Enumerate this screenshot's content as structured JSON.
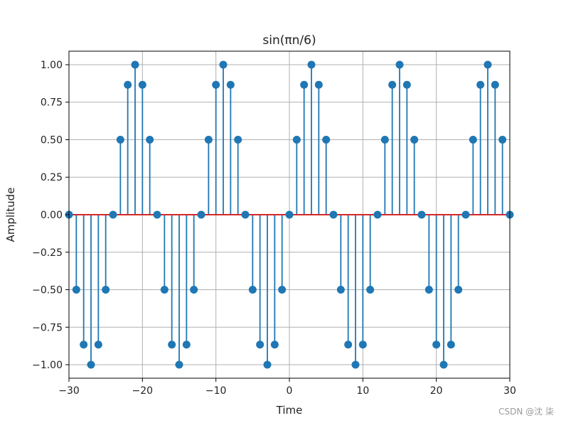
{
  "chart_data": {
    "type": "stem",
    "title": "sin(πn/6)",
    "xlabel": "Time",
    "ylabel": "Amplitude",
    "xlim": [
      -30,
      30
    ],
    "ylim": [
      -1.09,
      1.09
    ],
    "grid": true,
    "x_ticks": [
      -30,
      -20,
      -10,
      0,
      10,
      20,
      30
    ],
    "x_tick_labels": [
      "−30",
      "−20",
      "−10",
      "0",
      "10",
      "20",
      "30"
    ],
    "y_ticks": [
      -1.0,
      -0.75,
      -0.5,
      -0.25,
      0.0,
      0.25,
      0.5,
      0.75,
      1.0
    ],
    "y_tick_labels": [
      "−1.00",
      "−0.75",
      "−0.50",
      "−0.25",
      "0.00",
      "0.25",
      "0.50",
      "0.75",
      "1.00"
    ],
    "n": [
      -30,
      -29,
      -28,
      -27,
      -26,
      -25,
      -24,
      -23,
      -22,
      -21,
      -20,
      -19,
      -18,
      -17,
      -16,
      -15,
      -14,
      -13,
      -12,
      -11,
      -10,
      -9,
      -8,
      -7,
      -6,
      -5,
      -4,
      -3,
      -2,
      -1,
      0,
      1,
      2,
      3,
      4,
      5,
      6,
      7,
      8,
      9,
      10,
      11,
      12,
      13,
      14,
      15,
      16,
      17,
      18,
      19,
      20,
      21,
      22,
      23,
      24,
      25,
      26,
      27,
      28,
      29,
      30
    ],
    "values": [
      0,
      -0.5,
      -0.866,
      -1,
      -0.866,
      -0.5,
      0,
      0.5,
      0.866,
      1,
      0.866,
      0.5,
      0,
      -0.5,
      -0.866,
      -1,
      -0.866,
      -0.5,
      0,
      0.5,
      0.866,
      1,
      0.866,
      0.5,
      0,
      -0.5,
      -0.866,
      -1,
      -0.866,
      -0.5,
      0,
      0.5,
      0.866,
      1,
      0.866,
      0.5,
      0,
      -0.5,
      -0.866,
      -1,
      -0.866,
      -0.5,
      0,
      0.5,
      0.866,
      1,
      0.866,
      0.5,
      0,
      -0.5,
      -0.866,
      -1,
      -0.866,
      -0.5,
      0,
      0.5,
      0.866,
      1,
      0.866,
      0.5,
      0
    ],
    "stem_color": "#1f77b4",
    "baseline_color": "#d62728",
    "grid_color": "#b0b0b0"
  },
  "watermark": "CSDN @沈  柒"
}
